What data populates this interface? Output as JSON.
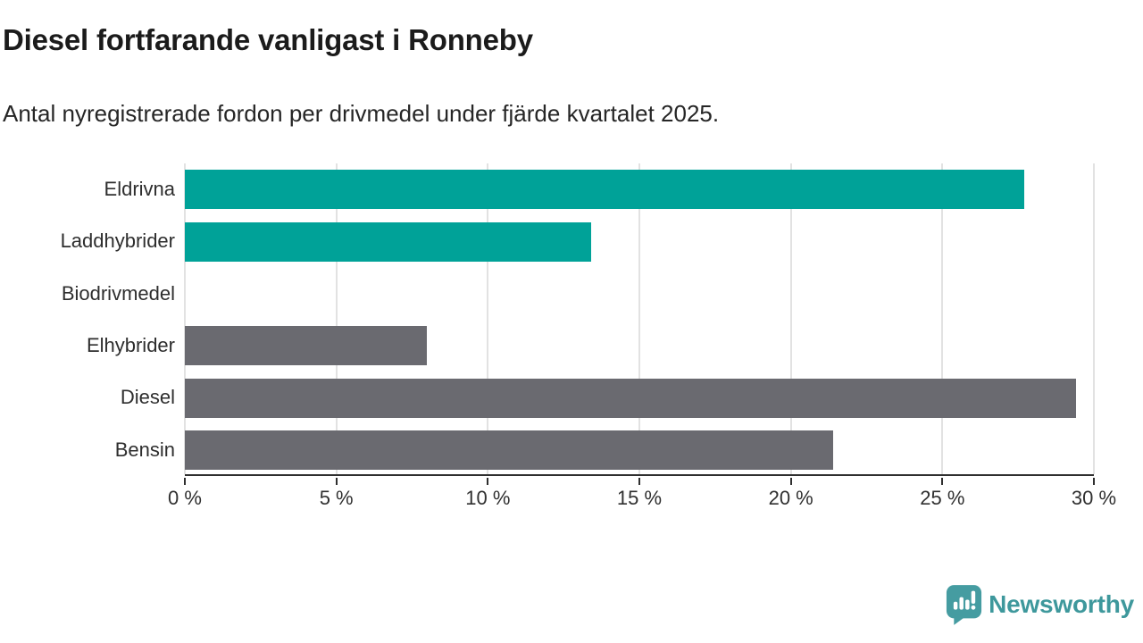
{
  "header": {
    "title": "Diesel fortfarande vanligast i Ronneby",
    "subtitle": "Antal nyregistrerade fordon per drivmedel under fjärde kvartalet 2025."
  },
  "colors": {
    "teal_bar": "#00a298",
    "gray_bar": "#6a6a70",
    "gridline": "#e2e2e2",
    "axis_line": "#2f2f2f",
    "axis_text": "#303030",
    "label_text": "#2e2e2e",
    "title_text": "#1b1b1b",
    "brand_teal": "#459ca1",
    "brand_text_teal": "#3e989c"
  },
  "chart_data": {
    "type": "bar",
    "orientation": "horizontal",
    "title": "Diesel fortfarande vanligast i Ronneby",
    "subtitle": "Antal nyregistrerade fordon per drivmedel under fjärde kvartalet 2025.",
    "categories": [
      "Eldrivna",
      "Laddhybrider",
      "Biodrivmedel",
      "Elhybrider",
      "Diesel",
      "Bensin"
    ],
    "values": [
      27.7,
      13.4,
      0,
      8.0,
      29.4,
      21.4
    ],
    "bar_colors": [
      "#00a298",
      "#00a298",
      "#00a298",
      "#6a6a70",
      "#6a6a70",
      "#6a6a70"
    ],
    "unit": "%",
    "xlim": [
      0,
      30
    ],
    "x_ticks": [
      0,
      5,
      10,
      15,
      20,
      25,
      30
    ],
    "x_tick_labels": [
      "0 %",
      "5 %",
      "10 %",
      "15 %",
      "20 %",
      "25 %",
      "30 %"
    ],
    "grid": "vertical",
    "legend": "none"
  },
  "footer": {
    "brand": "Newsworthy",
    "logo_icon": "newsworthy-speech-bubble-bars-icon"
  }
}
